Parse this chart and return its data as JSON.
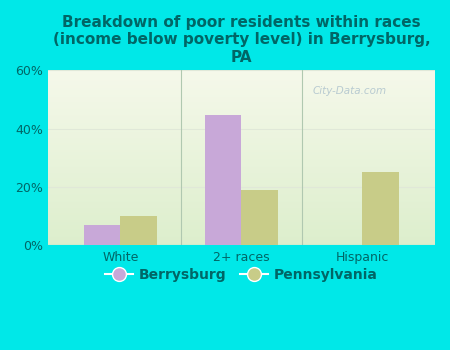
{
  "title": "Breakdown of poor residents within races\n(income below poverty level) in Berrysburg,\nPA",
  "categories": [
    "White",
    "2+ races",
    "Hispanic"
  ],
  "berrysburg_values": [
    7.0,
    44.5,
    0.0
  ],
  "pennsylvania_values": [
    10.0,
    19.0,
    25.0
  ],
  "berrysburg_color": "#c8a8d8",
  "pennsylvania_color": "#c8cc88",
  "background_color": "#00e8e8",
  "plot_bg_color_top": "#f2f7e8",
  "plot_bg_color_bottom": "#e0efd0",
  "text_color": "#006666",
  "grid_color": "#e0e8d8",
  "separator_color": "#b0c8b0",
  "ylim": [
    0,
    60
  ],
  "yticks": [
    0,
    20,
    40,
    60
  ],
  "ytick_labels": [
    "0%",
    "20%",
    "40%",
    "60%"
  ],
  "bar_width": 0.3,
  "title_fontsize": 11,
  "tick_fontsize": 9,
  "legend_fontsize": 10,
  "watermark": "City-Data.com"
}
